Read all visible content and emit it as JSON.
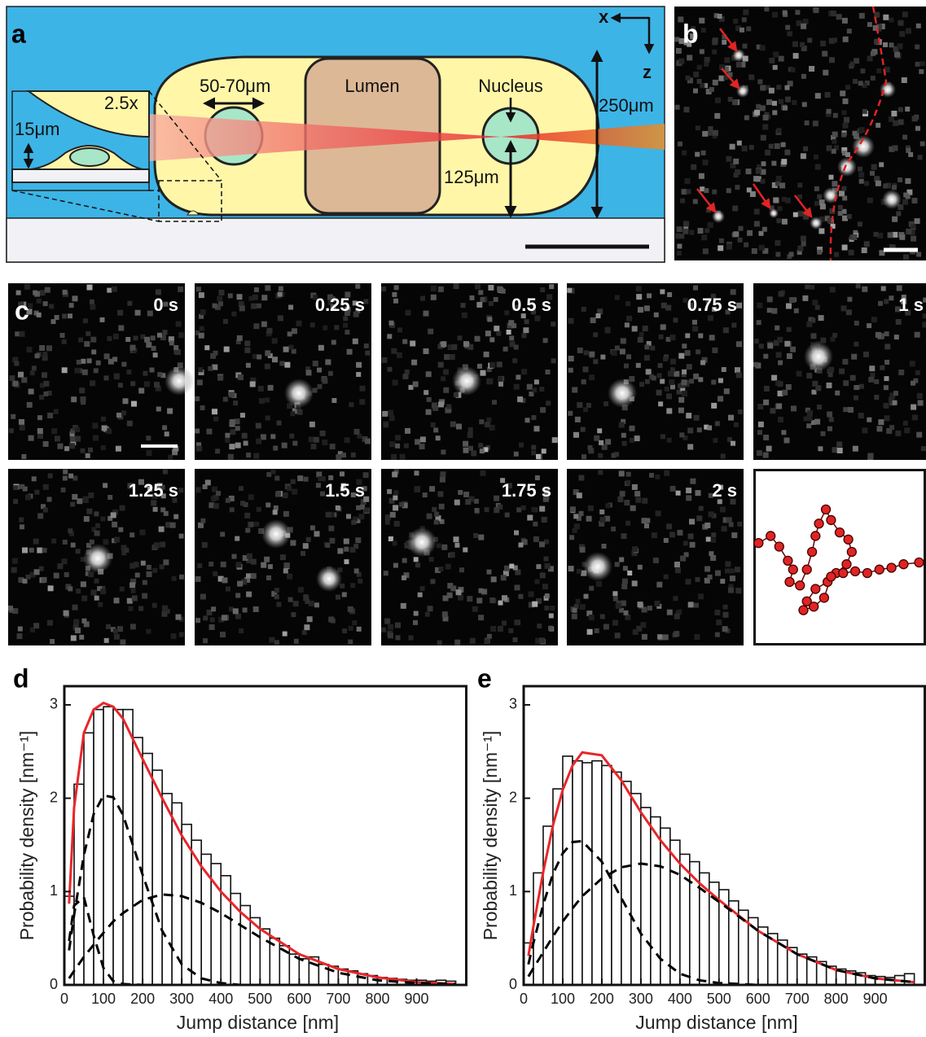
{
  "panel_a": {
    "label": "a",
    "magnification": "2.5x",
    "cell_height": "15μm",
    "sphere_size": "50-70μm",
    "lumen": "Lumen",
    "nucleus": "Nucleus",
    "height": "250μm",
    "depth": "125μm",
    "axis_x": "x",
    "axis_z": "z"
  },
  "panel_b": {
    "label": "b"
  },
  "panel_c": {
    "label": "c",
    "times": [
      "0 s",
      "0.25 s",
      "0.5 s",
      "0.75 s",
      "1 s",
      "1.25 s",
      "1.5 s",
      "1.75 s",
      "2 s"
    ],
    "trajectory": {
      "xlim": [
        0,
        100
      ],
      "ylim": [
        0,
        100
      ],
      "color": "#e02424",
      "x": [
        3,
        10,
        15,
        20,
        23,
        21,
        27,
        31,
        34,
        36,
        38,
        42,
        45,
        50,
        55,
        57,
        54,
        48,
        43,
        36,
        31,
        29,
        35,
        41,
        45,
        52,
        59,
        66,
        73,
        80,
        87,
        96
      ],
      "y": [
        58,
        62,
        56,
        48,
        43,
        36,
        34,
        43,
        53,
        62,
        69,
        77,
        71,
        64,
        60,
        53,
        46,
        41,
        36,
        32,
        25,
        20,
        22,
        27,
        39,
        41,
        42,
        41,
        43,
        44,
        46,
        47
      ]
    }
  },
  "chart_data": [
    {
      "type": "histogram",
      "label": "d",
      "xlabel": "Jump distance [nm]",
      "ylabel": "Probability density [nm⁻¹]",
      "bins": [
        0,
        25,
        50,
        75,
        100,
        125,
        150,
        175,
        200,
        225,
        250,
        275,
        300,
        325,
        350,
        375,
        400,
        425,
        450,
        475,
        500,
        525,
        550,
        575,
        600,
        625,
        650,
        675,
        700,
        725,
        750,
        775,
        800,
        825,
        850,
        875,
        900,
        925,
        950,
        975,
        1000
      ],
      "values": [
        0.95,
        2.15,
        2.7,
        2.95,
        2.98,
        2.95,
        2.95,
        2.65,
        2.48,
        2.3,
        2.05,
        1.95,
        1.72,
        1.55,
        1.4,
        1.3,
        1.17,
        0.98,
        0.85,
        0.72,
        0.6,
        0.5,
        0.42,
        0.33,
        0.28,
        0.3,
        0.22,
        0.2,
        0.17,
        0.15,
        0.12,
        0.1,
        0.08,
        0.07,
        0.06,
        0.05,
        0.05,
        0.04,
        0.05,
        0.04
      ],
      "lines": {
        "x": [
          12,
          25,
          50,
          75,
          100,
          125,
          150,
          200,
          250,
          300,
          350,
          400,
          450,
          500,
          600,
          700,
          800,
          900,
          1000
        ],
        "series": [
          {
            "color": "#e8262a",
            "style": "solid",
            "values": [
              0.87,
              1.9,
              2.7,
              2.95,
              3.02,
              2.98,
              2.85,
              2.42,
              2.0,
              1.6,
              1.27,
              1.0,
              0.78,
              0.6,
              0.33,
              0.17,
              0.08,
              0.03,
              0.01
            ]
          },
          {
            "color": "#000000",
            "style": "dashed",
            "values": [
              0.47,
              0.85,
              0.94,
              0.53,
              0.18,
              0.04,
              0.01,
              0,
              0,
              0,
              0,
              0,
              0,
              0,
              0,
              0,
              0,
              0,
              0
            ]
          },
          {
            "color": "#000000",
            "style": "dashed",
            "values": [
              0.37,
              0.75,
              1.39,
              1.83,
              2.03,
              2.01,
              1.82,
              1.18,
              0.58,
              0.22,
              0.07,
              0.02,
              0,
              0,
              0,
              0,
              0,
              0,
              0
            ]
          },
          {
            "color": "#000000",
            "style": "dashed",
            "values": [
              0.07,
              0.15,
              0.3,
              0.43,
              0.56,
              0.68,
              0.77,
              0.91,
              0.97,
              0.95,
              0.88,
              0.77,
              0.64,
              0.51,
              0.28,
              0.13,
              0.05,
              0.02,
              0.01
            ]
          }
        ]
      },
      "xlim": [
        0,
        1030
      ],
      "ylim": [
        0,
        3.2
      ],
      "xticks": [
        0,
        100,
        200,
        300,
        400,
        500,
        600,
        700,
        800,
        900
      ],
      "yticks": [
        0,
        1,
        2,
        3
      ],
      "bar_color": "#ffffff"
    },
    {
      "type": "histogram",
      "label": "e",
      "xlabel": "Jump distance [nm]",
      "ylabel": "Probability density [nm⁻¹]",
      "bins": [
        0,
        25,
        50,
        75,
        100,
        125,
        150,
        175,
        200,
        225,
        250,
        275,
        300,
        325,
        350,
        375,
        400,
        425,
        450,
        475,
        500,
        525,
        550,
        575,
        600,
        625,
        650,
        675,
        700,
        725,
        750,
        775,
        800,
        825,
        850,
        875,
        900,
        925,
        950,
        975,
        1000
      ],
      "values": [
        0.45,
        1.2,
        1.7,
        2.1,
        2.45,
        2.4,
        2.38,
        2.4,
        2.35,
        2.28,
        2.18,
        2.05,
        1.9,
        1.8,
        1.68,
        1.55,
        1.4,
        1.32,
        1.2,
        1.1,
        1.02,
        0.9,
        0.8,
        0.72,
        0.62,
        0.55,
        0.48,
        0.4,
        0.33,
        0.3,
        0.25,
        0.2,
        0.17,
        0.15,
        0.13,
        0.1,
        0.09,
        0.08,
        0.1,
        0.12
      ],
      "lines": {
        "x": [
          12,
          25,
          50,
          75,
          100,
          125,
          150,
          200,
          250,
          300,
          350,
          400,
          450,
          500,
          600,
          700,
          800,
          900,
          1000
        ],
        "series": [
          {
            "color": "#e8262a",
            "style": "solid",
            "values": [
              0.31,
              0.63,
              1.21,
              1.71,
              2.09,
              2.35,
              2.49,
              2.46,
              2.19,
              1.85,
              1.55,
              1.3,
              1.09,
              0.91,
              0.58,
              0.33,
              0.16,
              0.07,
              0.03
            ]
          },
          {
            "color": "#000000",
            "style": "dashed",
            "values": [
              0.22,
              0.45,
              0.86,
              1.19,
              1.41,
              1.53,
              1.54,
              1.32,
              0.93,
              0.55,
              0.28,
              0.12,
              0.05,
              0.02,
              0,
              0,
              0,
              0,
              0
            ]
          },
          {
            "color": "#000000",
            "style": "dashed",
            "values": [
              0.09,
              0.18,
              0.35,
              0.52,
              0.68,
              0.82,
              0.95,
              1.14,
              1.26,
              1.3,
              1.27,
              1.18,
              1.04,
              0.89,
              0.58,
              0.33,
              0.16,
              0.07,
              0.03
            ]
          }
        ]
      },
      "xlim": [
        0,
        1030
      ],
      "ylim": [
        0,
        3.2
      ],
      "xticks": [
        0,
        100,
        200,
        300,
        400,
        500,
        600,
        700,
        800,
        900
      ],
      "yticks": [
        0,
        1,
        2,
        3
      ],
      "bar_color": "#ffffff"
    }
  ]
}
